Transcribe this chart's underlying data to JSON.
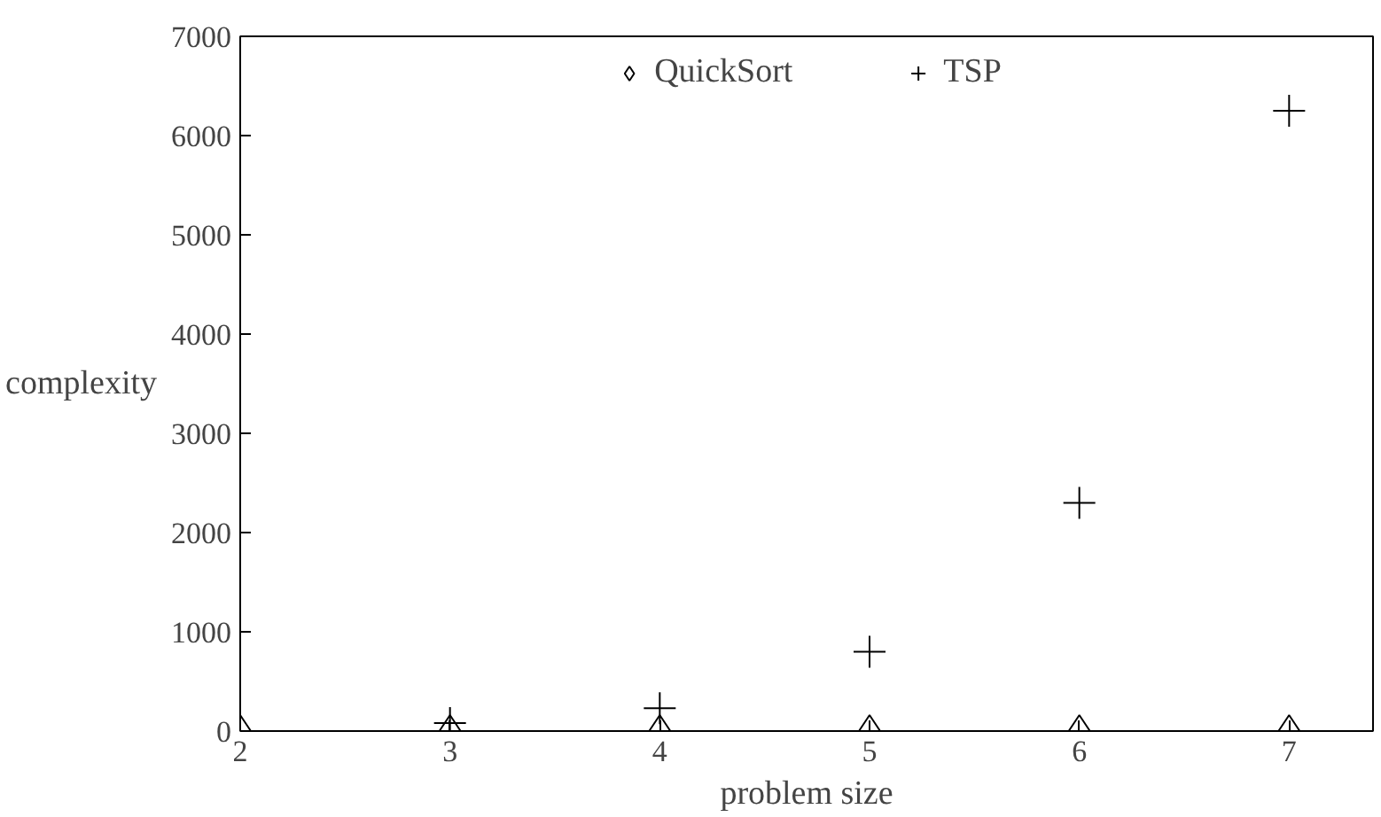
{
  "chart_data": {
    "type": "scatter",
    "xlabel": "problem size",
    "ylabel": "complexity",
    "x": [
      2,
      3,
      4,
      5,
      6,
      7
    ],
    "series": [
      {
        "name": "QuickSort",
        "color": "#000000",
        "marker": "diamond",
        "values": [
          0,
          0,
          0,
          0,
          0,
          0
        ]
      },
      {
        "name": "TSP",
        "color": "#000000",
        "marker": "cross",
        "values": [
          null,
          80,
          230,
          800,
          2300,
          6250
        ]
      }
    ],
    "xlim": [
      2,
      7.4
    ],
    "ylim": [
      0,
      7000
    ],
    "xticks": [
      2,
      3,
      4,
      5,
      6,
      7
    ],
    "yticks": [
      0,
      1000,
      2000,
      3000,
      4000,
      5000,
      6000,
      7000
    ],
    "grid": false,
    "legend": "top"
  }
}
